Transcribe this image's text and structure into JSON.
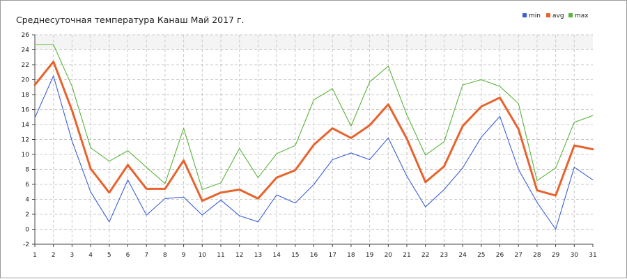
{
  "chart_data": {
    "type": "line",
    "title": "Среднесуточная температура Канаш  Май 2017 г.",
    "xlabel": "",
    "ylabel": "",
    "x": [
      1,
      2,
      3,
      4,
      5,
      6,
      7,
      8,
      9,
      10,
      11,
      12,
      13,
      14,
      15,
      16,
      17,
      18,
      19,
      20,
      21,
      22,
      23,
      24,
      25,
      26,
      27,
      28,
      29,
      30,
      31
    ],
    "x_tick_labels": [
      "1",
      "2",
      "3",
      "4",
      "5",
      "6",
      "7",
      "8",
      "9",
      "10",
      "11",
      "12",
      "13",
      "14",
      "15",
      "16",
      "17",
      "18",
      "19",
      "20",
      "21",
      "22",
      "23",
      "24",
      "25",
      "26",
      "27",
      "28",
      "29",
      "30",
      "31"
    ],
    "ylim": [
      -2,
      26
    ],
    "y_ticks": [
      -2,
      0,
      2,
      4,
      6,
      8,
      10,
      12,
      14,
      16,
      18,
      20,
      22,
      24,
      26
    ],
    "y_tick_labels": [
      "-2",
      "0",
      "2",
      "4",
      "6",
      "8",
      "10",
      "12",
      "14",
      "16",
      "18",
      "20",
      "22",
      "24",
      "26"
    ],
    "grid": true,
    "legend_position": "top-right",
    "series": [
      {
        "name": "min",
        "color": "#3c5fd6",
        "values": [
          14.9,
          20.5,
          11.8,
          5.0,
          1.0,
          6.6,
          1.9,
          4.1,
          4.3,
          1.9,
          3.9,
          1.8,
          1.0,
          4.6,
          3.5,
          6.0,
          9.3,
          10.2,
          9.3,
          12.2,
          7.1,
          3.0,
          5.3,
          8.2,
          12.3,
          15.1,
          8.0,
          3.6,
          0.0,
          8.3,
          6.6
        ]
      },
      {
        "name": "avg",
        "color": "#e8622c",
        "values": [
          19.3,
          22.4,
          15.9,
          8.1,
          4.9,
          8.6,
          5.4,
          5.4,
          9.2,
          3.8,
          4.9,
          5.3,
          4.1,
          6.9,
          7.9,
          11.3,
          13.5,
          12.2,
          13.9,
          16.7,
          12.1,
          6.3,
          8.4,
          13.8,
          16.4,
          17.6,
          13.4,
          5.2,
          4.5,
          11.2,
          10.7
        ]
      },
      {
        "name": "max",
        "color": "#5ab43a",
        "values": [
          24.7,
          24.7,
          19.1,
          10.9,
          9.1,
          10.5,
          8.3,
          6.1,
          13.5,
          5.3,
          6.2,
          10.8,
          6.9,
          10.1,
          11.2,
          17.3,
          18.8,
          13.8,
          19.7,
          21.8,
          15.3,
          9.9,
          11.7,
          19.3,
          20.0,
          19.1,
          16.8,
          6.5,
          8.2,
          14.3,
          15.2
        ]
      }
    ]
  }
}
